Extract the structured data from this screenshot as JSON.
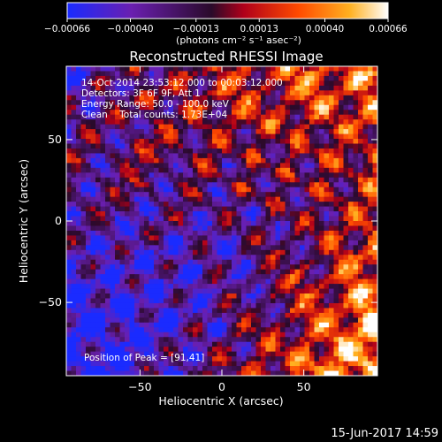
{
  "chart_data": {
    "type": "heatmap",
    "title": "Reconstructed RHESSI Image",
    "xlabel": "Heliocentric X (arcsec)",
    "ylabel": "Heliocentric Y (arcsec)",
    "xlim": [
      -95,
      95
    ],
    "ylim": [
      -95,
      95
    ],
    "x_ticks": [
      -50,
      0,
      50
    ],
    "y_ticks": [
      50,
      0,
      -50
    ],
    "x_tick_labels": [
      "−50",
      "0",
      "50"
    ],
    "y_tick_labels": [
      "50",
      "0",
      "−50"
    ],
    "colorbar": {
      "range": [
        -0.00066,
        0.00066
      ],
      "ticks": [
        -0.00066,
        -0.0004,
        -0.00013,
        0.00013,
        0.0004,
        0.00066
      ],
      "tick_labels": [
        "−0.00066",
        "−0.00040",
        "−0.00013",
        "0.00013",
        "0.00040",
        "0.00066"
      ],
      "units": "(photons cm⁻² s⁻¹ asec⁻²)",
      "colors": [
        "#1a2bff",
        "#6a1fb0",
        "#2a0a2a",
        "#b0001a",
        "#ff4a00",
        "#ffb020",
        "#ffffff"
      ]
    },
    "annotations": [
      "14-Oct-2014 23:53:12.000 to 00:03:12.000",
      "Detectors: 3F 6F 9F, Att 1",
      "Energy Range: 50.0 - 100.0 keV",
      "Clean    Total counts: 1.73E+04"
    ],
    "peak_label": "Position of Peak = [91,41]",
    "peak_position": [
      91,
      41
    ],
    "grid": false
  },
  "footer": {
    "timestamp": "15-Jun-2017 14:59"
  }
}
